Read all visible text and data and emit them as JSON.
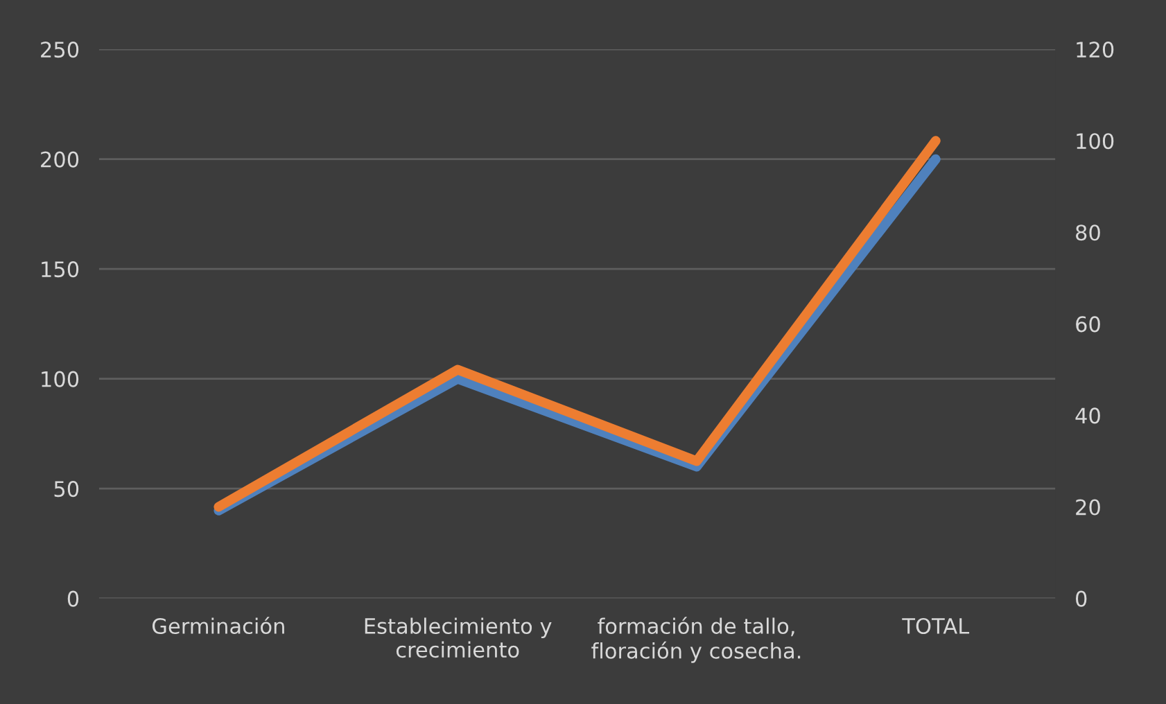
{
  "chart_data": {
    "type": "line",
    "categories": [
      "Germinación",
      "Establecimiento y\ncrecimiento",
      "formación de tallo,\nfloración y cosecha.",
      "TOTAL"
    ],
    "series": [
      {
        "color": "#4f81bd",
        "values": [
          40,
          100,
          60,
          200
        ]
      },
      {
        "color": "#ed7d31",
        "values": [
          20,
          50,
          30,
          100
        ],
        "axis": "y2"
      }
    ],
    "ylim": [
      0,
      250
    ],
    "yticks": [
      0,
      50,
      100,
      150,
      200,
      250
    ],
    "y2lim": [
      0,
      120
    ],
    "y2ticks": [
      0,
      20,
      40,
      60,
      80,
      100,
      120
    ],
    "grid": "y",
    "marker": "none",
    "line_style": "solid"
  }
}
